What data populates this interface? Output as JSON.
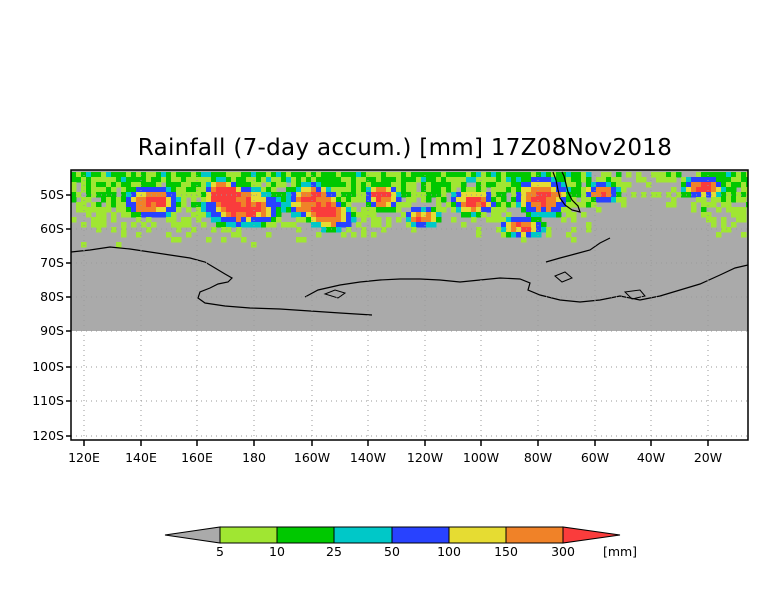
{
  "title": "Rainfall (7-day accum.) [mm] 17Z08Nov2018",
  "map": {
    "lat_labels": [
      "50S",
      "60S",
      "70S",
      "80S",
      "90S",
      "100S",
      "110S",
      "120S"
    ],
    "lon_labels": [
      "120E",
      "140E",
      "160E",
      "180",
      "160W",
      "140W",
      "120W",
      "100W",
      "80W",
      "60W",
      "40W",
      "20W"
    ],
    "land_color": "#aaaaaa",
    "grid": "dotted"
  },
  "colorbar": {
    "thresholds": [
      "5",
      "10",
      "25",
      "50",
      "100",
      "150",
      "300"
    ],
    "units": "[mm]",
    "colors": [
      "#aaaaaa",
      "#a0e632",
      "#00c800",
      "#00c8c8",
      "#2842ff",
      "#e6dc32",
      "#f08228",
      "#fa3c3c"
    ]
  }
}
